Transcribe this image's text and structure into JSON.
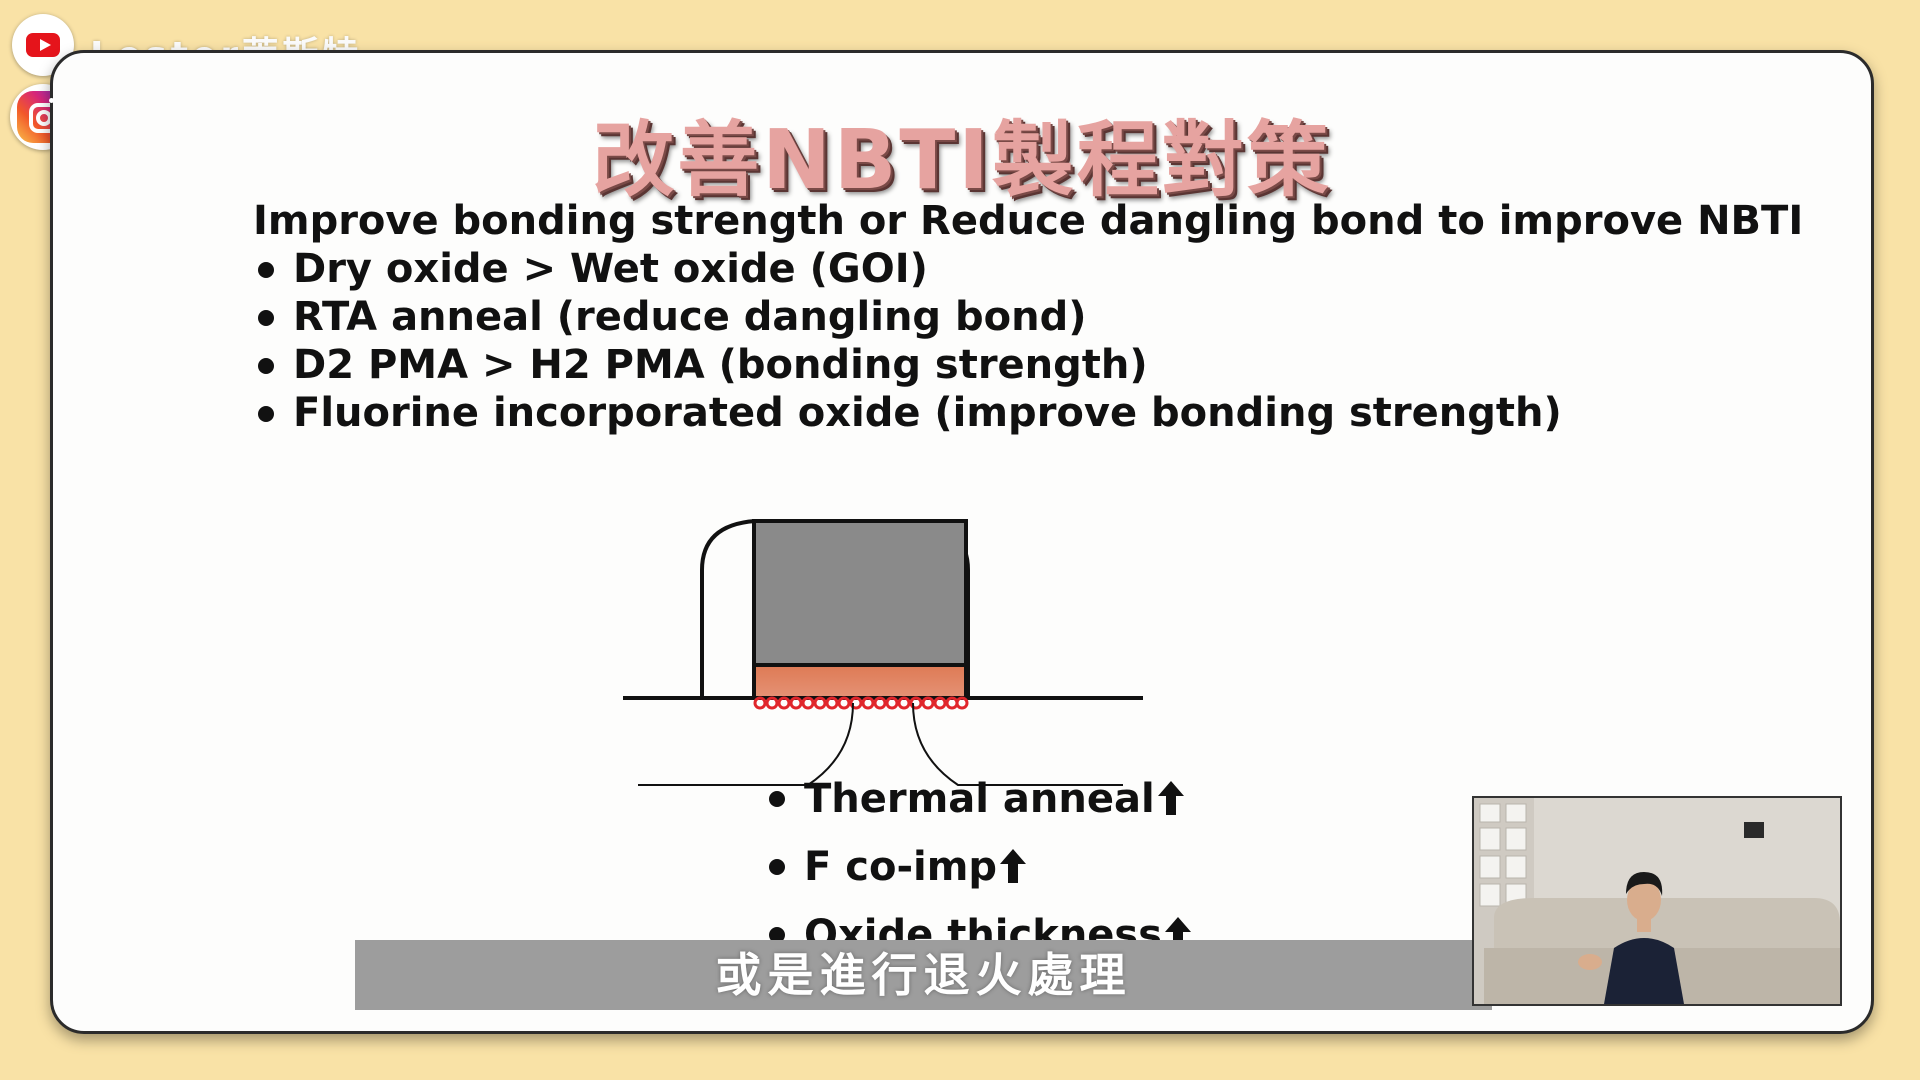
{
  "brand": {
    "channel_name": "Lester萊斯特"
  },
  "slide": {
    "title": "改善NBTI製程對策",
    "heading": "Improve bonding strength or Reduce dangling bond to improve NBTI",
    "bullets": [
      "Dry oxide > Wet oxide (GOI)",
      "RTA anneal (reduce dangling bond)",
      "D2 PMA > H2 PMA (bonding strength)",
      "Fluorine incorporated oxide (improve bonding strength)"
    ],
    "effects": [
      "Thermal anneal",
      "F co-imp",
      "Oxide thickness"
    ]
  },
  "subtitle": "或是進行退火處理",
  "colors": {
    "background": "#f9e2a6",
    "gate": "#8a8a8a",
    "gate_oxide": "#e0795a",
    "dangling_bonds": "#e0262b",
    "subtitle_bar": "#9d9d9d"
  },
  "icons": [
    "youtube-icon",
    "instagram-icon",
    "up-arrow-icon"
  ]
}
